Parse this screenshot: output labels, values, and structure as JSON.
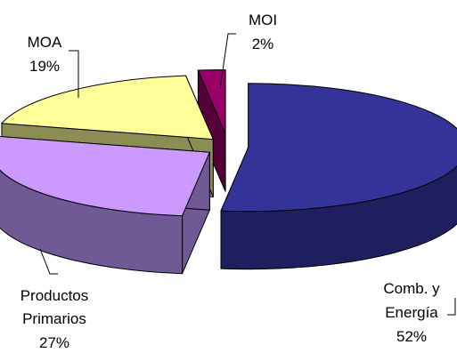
{
  "chart_data": {
    "type": "pie",
    "style": "3d-exploded",
    "title": "",
    "slices": [
      {
        "label_lines": [
          "Comb. y",
          "Energía"
        ],
        "value": 52,
        "value_label": "52%",
        "color_top": "#333399",
        "color_side": "#1f1f60"
      },
      {
        "label_lines": [
          "Productos",
          "Primarios"
        ],
        "value": 27,
        "value_label": "27%",
        "color_top": "#cc99ff",
        "color_side": "#6f5a95"
      },
      {
        "label_lines": [
          "MOA"
        ],
        "value": 19,
        "value_label": "19%",
        "color_top": "#ffff99",
        "color_side": "#8c8c55"
      },
      {
        "label_lines": [
          "MOI"
        ],
        "value": 2,
        "value_label": "2%",
        "color_top": "#990066",
        "color_side": "#55003a"
      }
    ]
  }
}
